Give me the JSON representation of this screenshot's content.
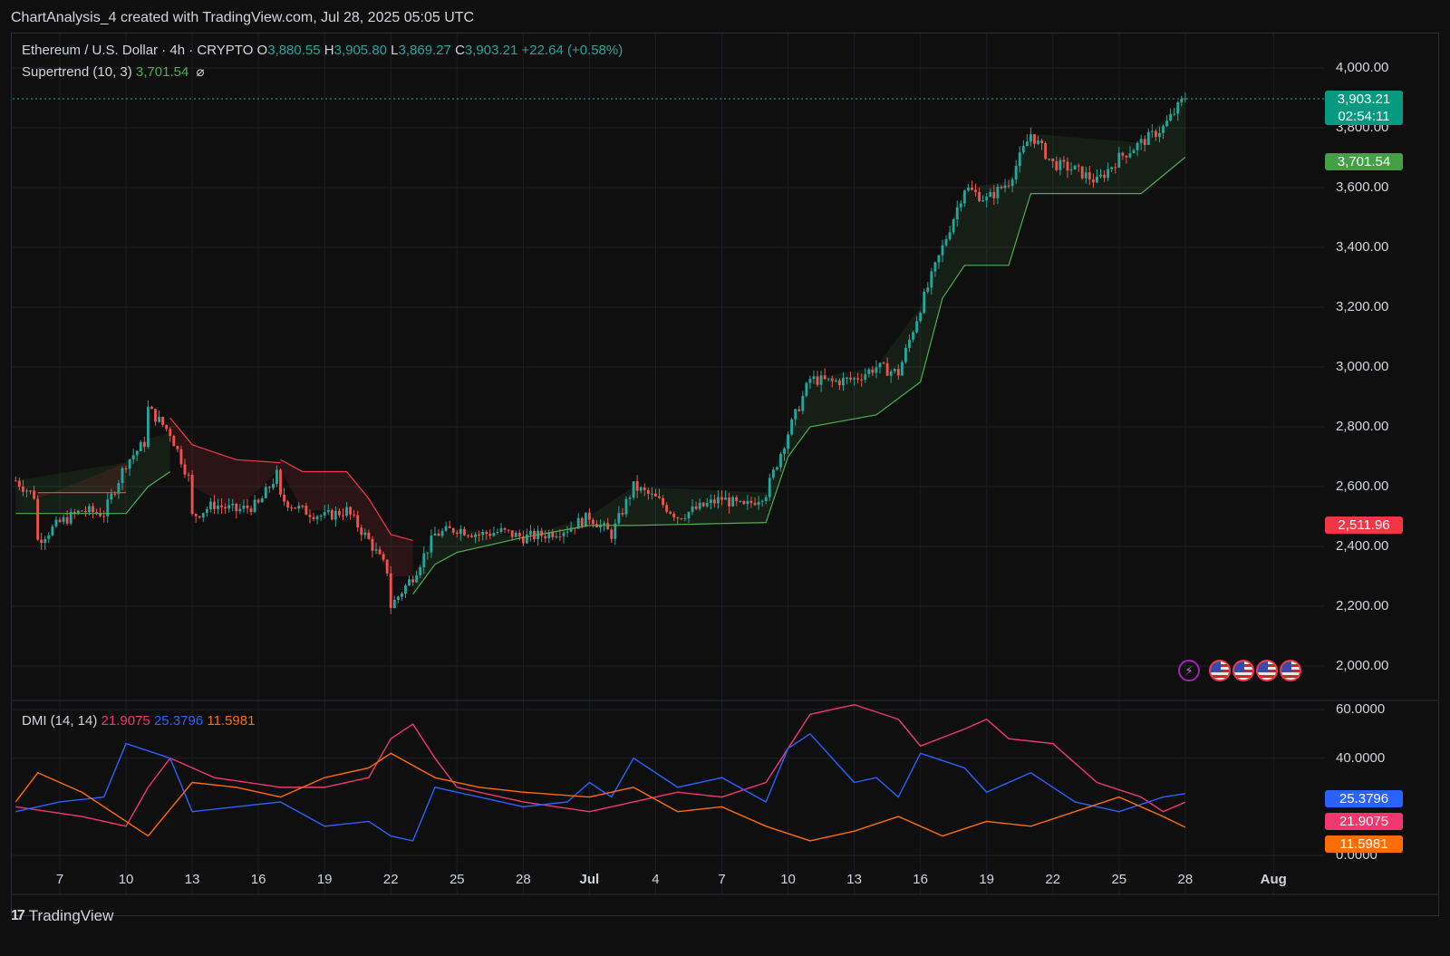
{
  "header": {
    "text": "ChartAnalysis_4 created with TradingView.com, Jul 28, 2025 05:05 UTC"
  },
  "legend": {
    "symbol": "Ethereum / U.S. Dollar · 4h · CRYPTO",
    "o_label": "O",
    "o_value": "3,880.55",
    "h_label": "H",
    "h_value": "3,905.80",
    "l_label": "L",
    "l_value": "3,869.27",
    "c_label": "C",
    "c_value": "3,903.21",
    "change": "+22.64 (+0.58%)",
    "supertrend_label": "Supertrend (10, 3)",
    "supertrend_value": "3,701.54",
    "supertrend_icon": "⌀"
  },
  "dmi_legend": {
    "label": "DMI (14, 14)",
    "plus_di": "21.9075",
    "minus_di": "25.3796",
    "adx": "11.5981"
  },
  "price_boxes": {
    "last_price": "3,903.21",
    "countdown": "02:54:11",
    "supertrend": "3,701.54",
    "red_level": "2,511.96",
    "minus_di": "25.3796",
    "plus_di": "21.9075",
    "adx": "11.5981"
  },
  "footer": {
    "brand": "TradingView",
    "mark": "17"
  },
  "colors": {
    "up": "#26a69a",
    "down": "#ef5350",
    "supertrend_up": "#4caf50",
    "supertrend_down": "#f23645",
    "plus_di": "#f23670",
    "minus_di": "#2962ff",
    "adx": "#ff6d00"
  },
  "chart_data": [
    {
      "type": "candlestick",
      "title": "Ethereum / U.S. Dollar · 4h · CRYPTO",
      "y_axis_ticks": [
        "4,000.00",
        "3,800.00",
        "3,600.00",
        "3,400.00",
        "3,200.00",
        "3,000.00",
        "2,800.00",
        "2,600.00",
        "2,400.00",
        "2,200.00",
        "2,000.00"
      ],
      "x_axis_ticks": [
        "7",
        "10",
        "13",
        "16",
        "19",
        "22",
        "25",
        "28",
        "Jul",
        "4",
        "7",
        "10",
        "13",
        "16",
        "19",
        "22",
        "25",
        "28",
        "Aug"
      ],
      "ylim": [
        2000,
        4000
      ],
      "close_path": [
        [
          "Jun 5",
          2620
        ],
        [
          "Jun 6",
          2560
        ],
        [
          "Jun 6",
          2420
        ],
        [
          "Jun 7",
          2480
        ],
        [
          "Jun 8",
          2520
        ],
        [
          "Jun 9",
          2510
        ],
        [
          "Jun 10",
          2680
        ],
        [
          "Jun 11",
          2760
        ],
        [
          "Jun 11",
          2860
        ],
        [
          "Jun 12",
          2780
        ],
        [
          "Jun 13",
          2600
        ],
        [
          "Jun 13",
          2500
        ],
        [
          "Jun 14",
          2540
        ],
        [
          "Jun 15",
          2520
        ],
        [
          "Jun 16",
          2540
        ],
        [
          "Jun 17",
          2660
        ],
        [
          "Jun 17",
          2560
        ],
        [
          "Jun 18",
          2520
        ],
        [
          "Jun 19",
          2500
        ],
        [
          "Jun 20",
          2520
        ],
        [
          "Jun 21",
          2420
        ],
        [
          "Jun 22",
          2300
        ],
        [
          "Jun 22",
          2200
        ],
        [
          "Jun 23",
          2300
        ],
        [
          "Jun 24",
          2440
        ],
        [
          "Jun 25",
          2460
        ],
        [
          "Jun 26",
          2440
        ],
        [
          "Jun 27",
          2450
        ],
        [
          "Jun 28",
          2430
        ],
        [
          "Jun 29",
          2440
        ],
        [
          "Jun 30",
          2460
        ],
        [
          "Jul 1",
          2500
        ],
        [
          "Jul 2",
          2440
        ],
        [
          "Jul 3",
          2600
        ],
        [
          "Jul 4",
          2560
        ],
        [
          "Jul 5",
          2500
        ],
        [
          "Jul 6",
          2530
        ],
        [
          "Jul 7",
          2560
        ],
        [
          "Jul 8",
          2530
        ],
        [
          "Jul 9",
          2580
        ],
        [
          "Jul 10",
          2780
        ],
        [
          "Jul 11",
          2960
        ],
        [
          "Jul 12",
          2950
        ],
        [
          "Jul 13",
          2960
        ],
        [
          "Jul 14",
          3000
        ],
        [
          "Jul 15",
          2980
        ],
        [
          "Jul 16",
          3200
        ],
        [
          "Jul 17",
          3400
        ],
        [
          "Jul 18",
          3600
        ],
        [
          "Jul 19",
          3560
        ],
        [
          "Jul 20",
          3620
        ],
        [
          "Jul 21",
          3780
        ],
        [
          "Jul 22",
          3680
        ],
        [
          "Jul 23",
          3660
        ],
        [
          "Jul 24",
          3620
        ],
        [
          "Jul 25",
          3700
        ],
        [
          "Jul 26",
          3750
        ],
        [
          "Jul 27",
          3800
        ],
        [
          "Jul 28",
          3903.21
        ]
      ],
      "supertrend": {
        "value": 3701.54,
        "down_segments": [
          [
            [
              "Jun 6",
              2580
            ],
            [
              "Jun 10",
              2580
            ]
          ],
          [
            [
              "Jun 12",
              2830
            ],
            [
              "Jun 13",
              2740
            ],
            [
              "Jun 15",
              2690
            ],
            [
              "Jun 17",
              2680
            ]
          ],
          [
            [
              "Jun 17",
              2690
            ],
            [
              "Jun 18",
              2650
            ],
            [
              "Jun 20",
              2650
            ],
            [
              "Jun 21",
              2560
            ],
            [
              "Jun 22",
              2440
            ],
            [
              "Jun 23",
              2420
            ]
          ]
        ],
        "up_segments": [
          [
            [
              "Jun 5",
              2510
            ],
            [
              "Jun 10",
              2510
            ],
            [
              "Jun 11",
              2600
            ],
            [
              "Jun 12",
              2650
            ]
          ],
          [
            [
              "Jun 16",
              2510
            ]
          ],
          [
            [
              "Jun 23",
              2240
            ],
            [
              "Jun 24",
              2340
            ],
            [
              "Jun 25",
              2380
            ],
            [
              "Jun 28",
              2430
            ],
            [
              "Jul 1",
              2470
            ],
            [
              "Jul 3",
              2470
            ],
            [
              "Jul 9",
              2480
            ],
            [
              "Jul 10",
              2700
            ],
            [
              "Jul 11",
              2800
            ],
            [
              "Jul 14",
              2840
            ],
            [
              "Jul 16",
              2950
            ],
            [
              "Jul 17",
              3230
            ],
            [
              "Jul 18",
              3340
            ],
            [
              "Jul 20",
              3340
            ],
            [
              "Jul 21",
              3580
            ],
            [
              "Jul 26",
              3580
            ],
            [
              "Jul 28",
              3701.54
            ]
          ]
        ]
      },
      "last_price": 3903.21,
      "marked_level": 2511.96
    },
    {
      "type": "line",
      "title": "DMI (14, 14)",
      "y_axis_ticks": [
        "60.0000",
        "40.0000",
        "0.0000"
      ],
      "ylim": [
        0,
        60
      ],
      "series": [
        {
          "name": "21.9075",
          "values": [
            [
              "Jun 5",
              20
            ],
            [
              "Jun 8",
              16
            ],
            [
              "Jun 10",
              12
            ],
            [
              "Jun 11",
              28
            ],
            [
              "Jun 12",
              40
            ],
            [
              "Jun 14",
              32
            ],
            [
              "Jun 17",
              28
            ],
            [
              "Jun 19",
              28
            ],
            [
              "Jun 21",
              32
            ],
            [
              "Jun 22",
              48
            ],
            [
              "Jun 23",
              54
            ],
            [
              "Jun 24",
              40
            ],
            [
              "Jun 25",
              28
            ],
            [
              "Jun 28",
              22
            ],
            [
              "Jul 1",
              18
            ],
            [
              "Jul 3",
              22
            ],
            [
              "Jul 5",
              26
            ],
            [
              "Jul 7",
              24
            ],
            [
              "Jul 9",
              30
            ],
            [
              "Jul 10",
              44
            ],
            [
              "Jul 11",
              58
            ],
            [
              "Jul 13",
              62
            ],
            [
              "Jul 15",
              56
            ],
            [
              "Jul 16",
              45
            ],
            [
              "Jul 18",
              52
            ],
            [
              "Jul 19",
              56
            ],
            [
              "Jul 20",
              48
            ],
            [
              "Jul 22",
              46
            ],
            [
              "Jul 24",
              30
            ],
            [
              "Jul 26",
              24
            ],
            [
              "Jul 27",
              18
            ],
            [
              "Jul 28",
              21.9
            ]
          ]
        },
        {
          "name": "25.3796",
          "values": [
            [
              "Jun 5",
              18
            ],
            [
              "Jun 7",
              22
            ],
            [
              "Jun 9",
              24
            ],
            [
              "Jun 10",
              46
            ],
            [
              "Jun 12",
              40
            ],
            [
              "Jun 13",
              18
            ],
            [
              "Jun 15",
              20
            ],
            [
              "Jun 17",
              22
            ],
            [
              "Jun 19",
              12
            ],
            [
              "Jun 21",
              14
            ],
            [
              "Jun 22",
              8
            ],
            [
              "Jun 23",
              6
            ],
            [
              "Jun 24",
              28
            ],
            [
              "Jun 26",
              24
            ],
            [
              "Jun 28",
              20
            ],
            [
              "Jun 30",
              22
            ],
            [
              "Jul 1",
              30
            ],
            [
              "Jul 2",
              24
            ],
            [
              "Jul 3",
              40
            ],
            [
              "Jul 5",
              28
            ],
            [
              "Jul 7",
              32
            ],
            [
              "Jul 9",
              22
            ],
            [
              "Jul 10",
              44
            ],
            [
              "Jul 11",
              50
            ],
            [
              "Jul 13",
              30
            ],
            [
              "Jul 14",
              32
            ],
            [
              "Jul 15",
              24
            ],
            [
              "Jul 16",
              42
            ],
            [
              "Jul 18",
              36
            ],
            [
              "Jul 19",
              26
            ],
            [
              "Jul 21",
              34
            ],
            [
              "Jul 23",
              22
            ],
            [
              "Jul 25",
              18
            ],
            [
              "Jul 27",
              24
            ],
            [
              "Jul 28",
              25.4
            ]
          ]
        },
        {
          "name": "11.5981",
          "values": [
            [
              "Jun 5",
              22
            ],
            [
              "Jun 6",
              34
            ],
            [
              "Jun 8",
              26
            ],
            [
              "Jun 10",
              14
            ],
            [
              "Jun 11",
              8
            ],
            [
              "Jun 13",
              30
            ],
            [
              "Jun 15",
              28
            ],
            [
              "Jun 17",
              24
            ],
            [
              "Jun 19",
              32
            ],
            [
              "Jun 21",
              36
            ],
            [
              "Jun 22",
              42
            ],
            [
              "Jun 24",
              32
            ],
            [
              "Jun 26",
              28
            ],
            [
              "Jun 28",
              26
            ],
            [
              "Jul 1",
              24
            ],
            [
              "Jul 3",
              28
            ],
            [
              "Jul 5",
              18
            ],
            [
              "Jul 7",
              20
            ],
            [
              "Jul 9",
              12
            ],
            [
              "Jul 11",
              6
            ],
            [
              "Jul 13",
              10
            ],
            [
              "Jul 15",
              16
            ],
            [
              "Jul 17",
              8
            ],
            [
              "Jul 19",
              14
            ],
            [
              "Jul 21",
              12
            ],
            [
              "Jul 23",
              18
            ],
            [
              "Jul 25",
              24
            ],
            [
              "Jul 27",
              16
            ],
            [
              "Jul 28",
              11.6
            ]
          ]
        }
      ]
    }
  ]
}
